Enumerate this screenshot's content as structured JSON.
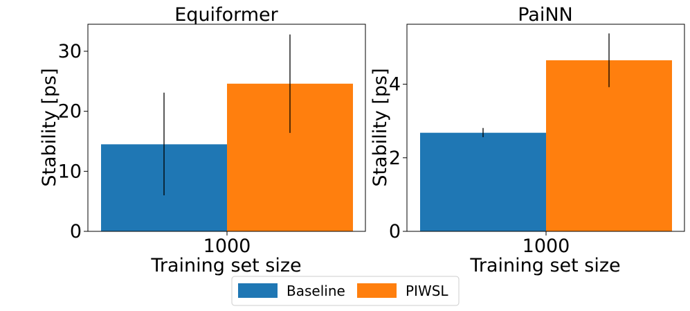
{
  "chart_data": [
    {
      "type": "bar",
      "title": "Equiformer",
      "xlabel": "Training set size",
      "ylabel": "Stability [ps]",
      "categories": [
        "1000"
      ],
      "ylim": [
        0,
        34.5
      ],
      "yticks": [
        0,
        10,
        20,
        30
      ],
      "grid": false,
      "series": [
        {
          "name": "Baseline",
          "values": [
            14.5
          ],
          "err_low": [
            6.0
          ],
          "err_high": [
            23.1
          ],
          "color": "#1f77b4"
        },
        {
          "name": "PIWSL",
          "values": [
            24.6
          ],
          "err_low": [
            16.4
          ],
          "err_high": [
            32.8
          ],
          "color": "#ff7f0e"
        }
      ]
    },
    {
      "type": "bar",
      "title": "PaiNN",
      "xlabel": "Training set size",
      "ylabel": "Stability [ps]",
      "categories": [
        "1000"
      ],
      "ylim": [
        0,
        5.63
      ],
      "yticks": [
        0,
        2,
        4
      ],
      "grid": false,
      "series": [
        {
          "name": "Baseline",
          "values": [
            2.68
          ],
          "err_low": [
            2.56
          ],
          "err_high": [
            2.81
          ],
          "color": "#1f77b4"
        },
        {
          "name": "PIWSL",
          "values": [
            4.65
          ],
          "err_low": [
            3.92
          ],
          "err_high": [
            5.38
          ],
          "color": "#ff7f0e"
        }
      ]
    }
  ],
  "legend": {
    "placement": "bottom-center",
    "items": [
      {
        "label": "Baseline",
        "color": "#1f77b4"
      },
      {
        "label": "PIWSL",
        "color": "#ff7f0e"
      }
    ]
  }
}
